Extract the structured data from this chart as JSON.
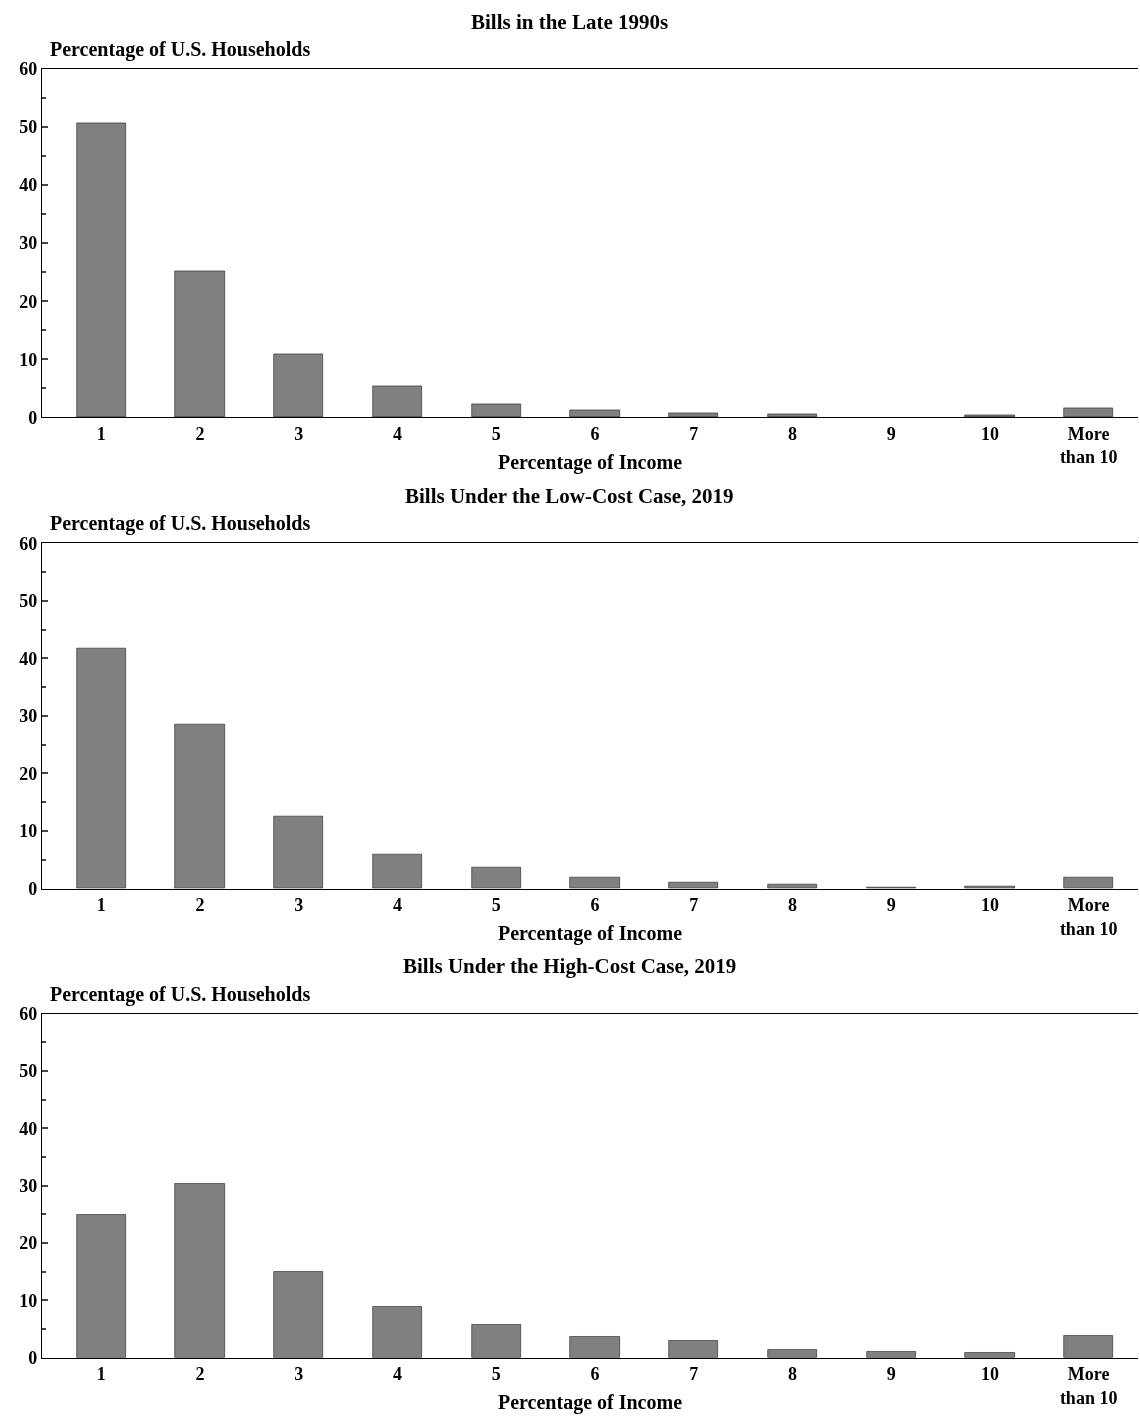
{
  "chart_data": [
    {
      "type": "bar",
      "title": "Bills in the Late 1990s",
      "ylabel": "Percentage of U.S. Households",
      "xlabel": "Percentage of Income",
      "categories": [
        "1",
        "2",
        "3",
        "4",
        "5",
        "6",
        "7",
        "8",
        "9",
        "10",
        "More\nthan 10"
      ],
      "values": [
        50.7,
        25.2,
        10.9,
        5.4,
        2.3,
        1.3,
        0.7,
        0.5,
        0,
        0.3,
        1.6
      ],
      "color": "#808080",
      "ylim": [
        0,
        60
      ],
      "yticks": [
        0,
        10,
        20,
        30,
        40,
        50,
        60
      ]
    },
    {
      "type": "bar",
      "title": "Bills Under the Low-Cost Case, 2019",
      "ylabel": "Percentage of U.S. Households",
      "xlabel": "Percentage of Income",
      "categories": [
        "1",
        "2",
        "3",
        "4",
        "5",
        "6",
        "7",
        "8",
        "9",
        "10",
        "More\nthan 10"
      ],
      "values": [
        41.8,
        28.5,
        12.5,
        6.0,
        3.6,
        1.9,
        1.1,
        0.7,
        0.2,
        0.3,
        1.9
      ],
      "color": "#808080",
      "ylim": [
        0,
        60
      ],
      "yticks": [
        0,
        10,
        20,
        30,
        40,
        50,
        60
      ]
    },
    {
      "type": "bar",
      "title": "Bills Under the High-Cost Case, 2019",
      "ylabel": "Percentage of U.S. Households",
      "xlabel": "Percentage of Income",
      "categories": [
        "1",
        "2",
        "3",
        "4",
        "5",
        "6",
        "7",
        "8",
        "9",
        "10",
        "More\nthan 10"
      ],
      "values": [
        24.9,
        30.4,
        15.1,
        8.9,
        5.8,
        3.6,
        2.9,
        1.5,
        1.0,
        0.9,
        3.8
      ],
      "color": "#808080",
      "ylim": [
        0,
        60
      ],
      "yticks": [
        0,
        10,
        20,
        30,
        40,
        50,
        60
      ]
    }
  ]
}
